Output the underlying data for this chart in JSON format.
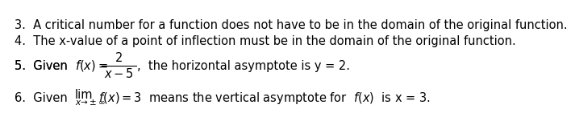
{
  "background_color": "#ffffff",
  "line3_text": "3.  A critical number for a function does not have to be in the domain of the original function.",
  "line4_text": "4.  The x-value of a point of inflection must be in the domain of the original function.",
  "line5_prefix": "5.  Given  ",
  "line5_fraction_num": "2",
  "line5_fraction_den": "x − 5",
  "line5_suffix": ",  the horizontal asymptote is y = 2.",
  "line6_prefix": "6.  Given  ",
  "line6_lim": "lim",
  "line6_sub": "x→±∞",
  "line6_suffix": " f(x) = 3  means the vertical asymptote for  f(x)  is x = 3.",
  "fontsize": 10.5,
  "small_fontsize": 7.5,
  "bg": "#ffffff"
}
